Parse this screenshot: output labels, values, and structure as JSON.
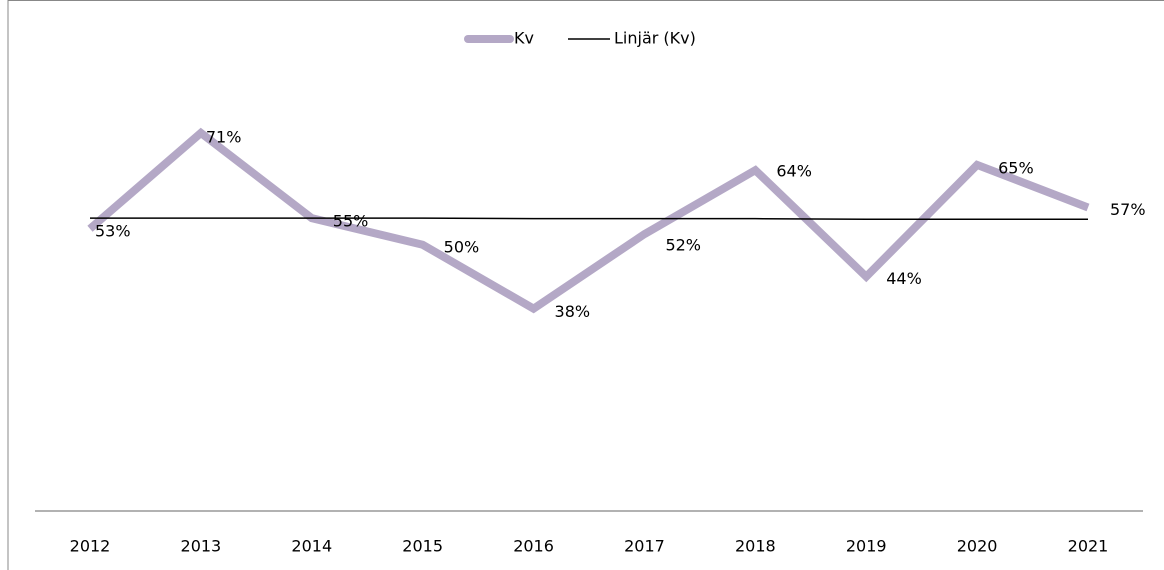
{
  "chart_data": {
    "type": "line",
    "categories": [
      "2012",
      "2013",
      "2014",
      "2015",
      "2016",
      "2017",
      "2018",
      "2019",
      "2020",
      "2021"
    ],
    "series": [
      {
        "name": "Kv",
        "color": "#b4a8c6",
        "values": [
          53,
          71,
          55,
          50,
          38,
          52,
          64,
          44,
          65,
          57
        ],
        "value_labels": [
          "53%",
          "71%",
          "55%",
          "50%",
          "38%",
          "52%",
          "64%",
          "44%",
          "65%",
          "57%"
        ]
      },
      {
        "name": "Linjär (Kv)",
        "color": "#000000",
        "trendline": true,
        "values": [
          55.0,
          55.0,
          55.0,
          55.0,
          54.9,
          54.9,
          54.9,
          54.8,
          54.8,
          54.8
        ]
      }
    ],
    "ylim": [
      0,
      80
    ],
    "legend": "top"
  }
}
